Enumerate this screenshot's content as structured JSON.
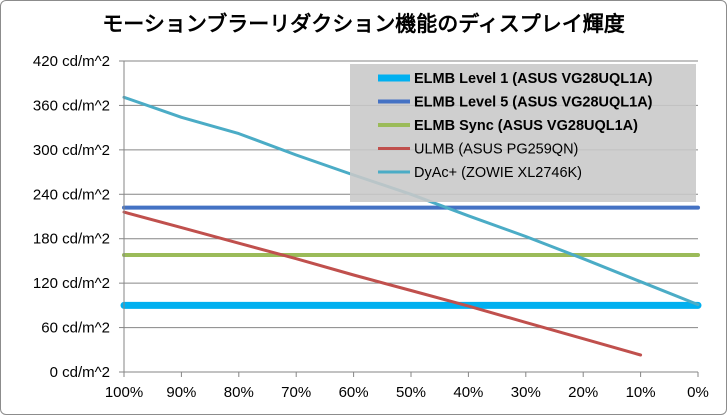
{
  "chart_data": {
    "type": "line",
    "title": "モーションブラーリダクション機能のディスプレイ輝度",
    "xlabel": "",
    "ylabel": "",
    "x": [
      "100%",
      "90%",
      "80%",
      "70%",
      "60%",
      "50%",
      "40%",
      "30%",
      "20%",
      "10%",
      "0%"
    ],
    "ylim": [
      0,
      420
    ],
    "yticks": [
      0,
      60,
      120,
      180,
      240,
      300,
      360,
      420
    ],
    "ytick_labels": [
      "0 cd/m^2",
      "60 cd/m^2",
      "120 cd/m^2",
      "180 cd/m^2",
      "240 cd/m^2",
      "300 cd/m^2",
      "360 cd/m^2",
      "420 cd/m^2"
    ],
    "grid": true,
    "legend_position": "top-right",
    "series": [
      {
        "name": "ELMB Level 1 (ASUS VG28UQL1A)",
        "color": "#00b0f0",
        "width": 7,
        "bold": true,
        "values": [
          90,
          90,
          90,
          90,
          90,
          90,
          90,
          90,
          90,
          90,
          90
        ]
      },
      {
        "name": "ELMB Level 5 (ASUS VG28UQL1A)",
        "color": "#4472c4",
        "width": 4,
        "bold": true,
        "values": [
          222,
          222,
          222,
          222,
          222,
          222,
          222,
          222,
          222,
          222,
          222
        ]
      },
      {
        "name": "ELMB Sync (ASUS VG28UQL1A)",
        "color": "#9bbb59",
        "width": 4,
        "bold": true,
        "values": [
          158,
          158,
          158,
          158,
          158,
          158,
          158,
          158,
          158,
          158,
          158
        ]
      },
      {
        "name": "ULMB (ASUS PG259QN)",
        "color": "#c0504d",
        "width": 3,
        "bold": false,
        "values": [
          216,
          195,
          174,
          153,
          131,
          110,
          89,
          67,
          45,
          23,
          null
        ]
      },
      {
        "name": "DyAc+ (ZOWIE XL2746K)",
        "color": "#4bacc6",
        "width": 3,
        "bold": false,
        "values": [
          371,
          344,
          322,
          293,
          266,
          240,
          211,
          183,
          153,
          122,
          91
        ]
      }
    ]
  }
}
